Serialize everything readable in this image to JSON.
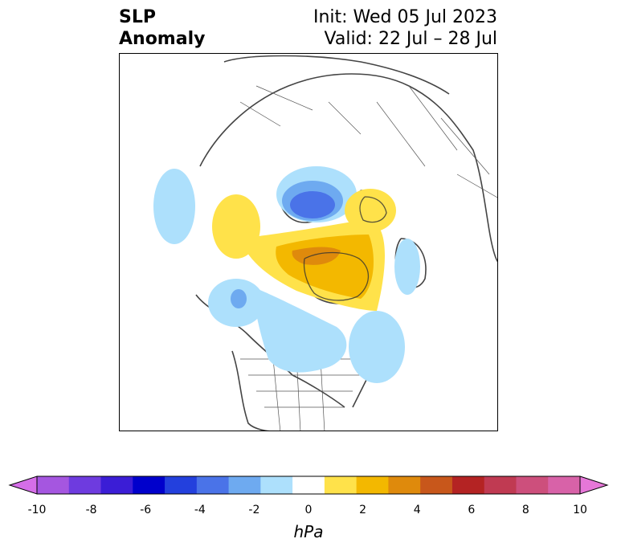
{
  "title": {
    "variable_line1": "SLP",
    "variable_line2": "Anomaly",
    "init": "Init: Wed 05 Jul 2023",
    "valid": "Valid: 22 Jul – 28 Jul"
  },
  "colorbar": {
    "unit": "hPa",
    "ticks": [
      "-10",
      "-8",
      "-6",
      "-4",
      "-2",
      "0",
      "2",
      "4",
      "6",
      "8",
      "10"
    ],
    "colors": [
      "#d56ee8",
      "#a556e0",
      "#6e3bdf",
      "#3b1dd6",
      "#0000cc",
      "#2340dd",
      "#4a73e8",
      "#6eaaf0",
      "#ade0fc",
      "#ffffff",
      "#ffe24a",
      "#f3b800",
      "#df8a0c",
      "#c8571b",
      "#b42323",
      "#c03a52",
      "#cd4f7c",
      "#d862a8",
      "#e677d8"
    ]
  },
  "map": {
    "anomaly_regions": [
      {
        "name": "Central Arctic low",
        "sign": "negative",
        "peak": "-5"
      },
      {
        "name": "Greenland high",
        "sign": "positive",
        "peak": "4"
      },
      {
        "name": "Scandinavia high",
        "sign": "positive",
        "peak": "2"
      },
      {
        "name": "Eastern Pacific low",
        "sign": "negative",
        "peak": "-3"
      },
      {
        "name": "Canada low",
        "sign": "negative",
        "peak": "-1"
      },
      {
        "name": "North Atlantic low",
        "sign": "negative",
        "peak": "-1"
      }
    ]
  }
}
